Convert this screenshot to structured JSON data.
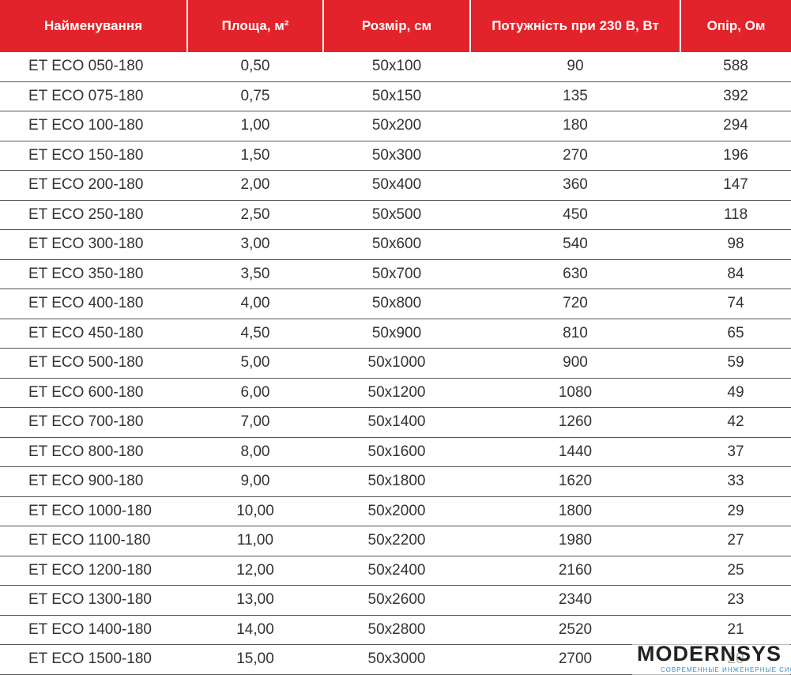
{
  "table": {
    "header": [
      "Найменування",
      "Площа, м²",
      "Розмір, см",
      "Потужність при 230 В, Вт",
      "Опір, Ом"
    ],
    "rows": [
      [
        "ET ECO 050-180",
        "0,50",
        "50x100",
        "90",
        "588"
      ],
      [
        "ET ECO 075-180",
        "0,75",
        "50x150",
        "135",
        "392"
      ],
      [
        "ET ECO 100-180",
        "1,00",
        "50x200",
        "180",
        "294"
      ],
      [
        "ET ECO 150-180",
        "1,50",
        "50x300",
        "270",
        "196"
      ],
      [
        "ET ECO 200-180",
        "2,00",
        "50x400",
        "360",
        "147"
      ],
      [
        "ET ECO 250-180",
        "2,50",
        "50x500",
        "450",
        "118"
      ],
      [
        "ET ECO 300-180",
        "3,00",
        "50x600",
        "540",
        "98"
      ],
      [
        "ET ECO 350-180",
        "3,50",
        "50x700",
        "630",
        "84"
      ],
      [
        "ET ECO 400-180",
        "4,00",
        "50x800",
        "720",
        "74"
      ],
      [
        "ET ECO 450-180",
        "4,50",
        "50x900",
        "810",
        "65"
      ],
      [
        "ET ECO 500-180",
        "5,00",
        "50x1000",
        "900",
        "59"
      ],
      [
        "ET ECO 600-180",
        "6,00",
        "50x1200",
        "1080",
        "49"
      ],
      [
        "ET ECO 700-180",
        "7,00",
        "50x1400",
        "1260",
        "42"
      ],
      [
        "ET ECO 800-180",
        "8,00",
        "50x1600",
        "1440",
        "37"
      ],
      [
        "ET ECO 900-180",
        "9,00",
        "50x1800",
        "1620",
        "33"
      ],
      [
        "ET ECO 1000-180",
        "10,00",
        "50x2000",
        "1800",
        "29"
      ],
      [
        "ET ECO 1100-180",
        "11,00",
        "50x2200",
        "1980",
        "27"
      ],
      [
        "ET ECO 1200-180",
        "12,00",
        "50x2400",
        "2160",
        "25"
      ],
      [
        "ET ECO 1300-180",
        "13,00",
        "50x2600",
        "2340",
        "23"
      ],
      [
        "ET ECO 1400-180",
        "14,00",
        "50x2800",
        "2520",
        "21"
      ],
      [
        "ET ECO 1500-180",
        "15,00",
        "50x3000",
        "2700",
        "20"
      ]
    ]
  },
  "watermark": {
    "brand": "MODERNSYS",
    "tagline": "СОВРЕМЕННЫЕ ИНЖЕНЕРНЫЕ СИСТЕМЫ"
  }
}
